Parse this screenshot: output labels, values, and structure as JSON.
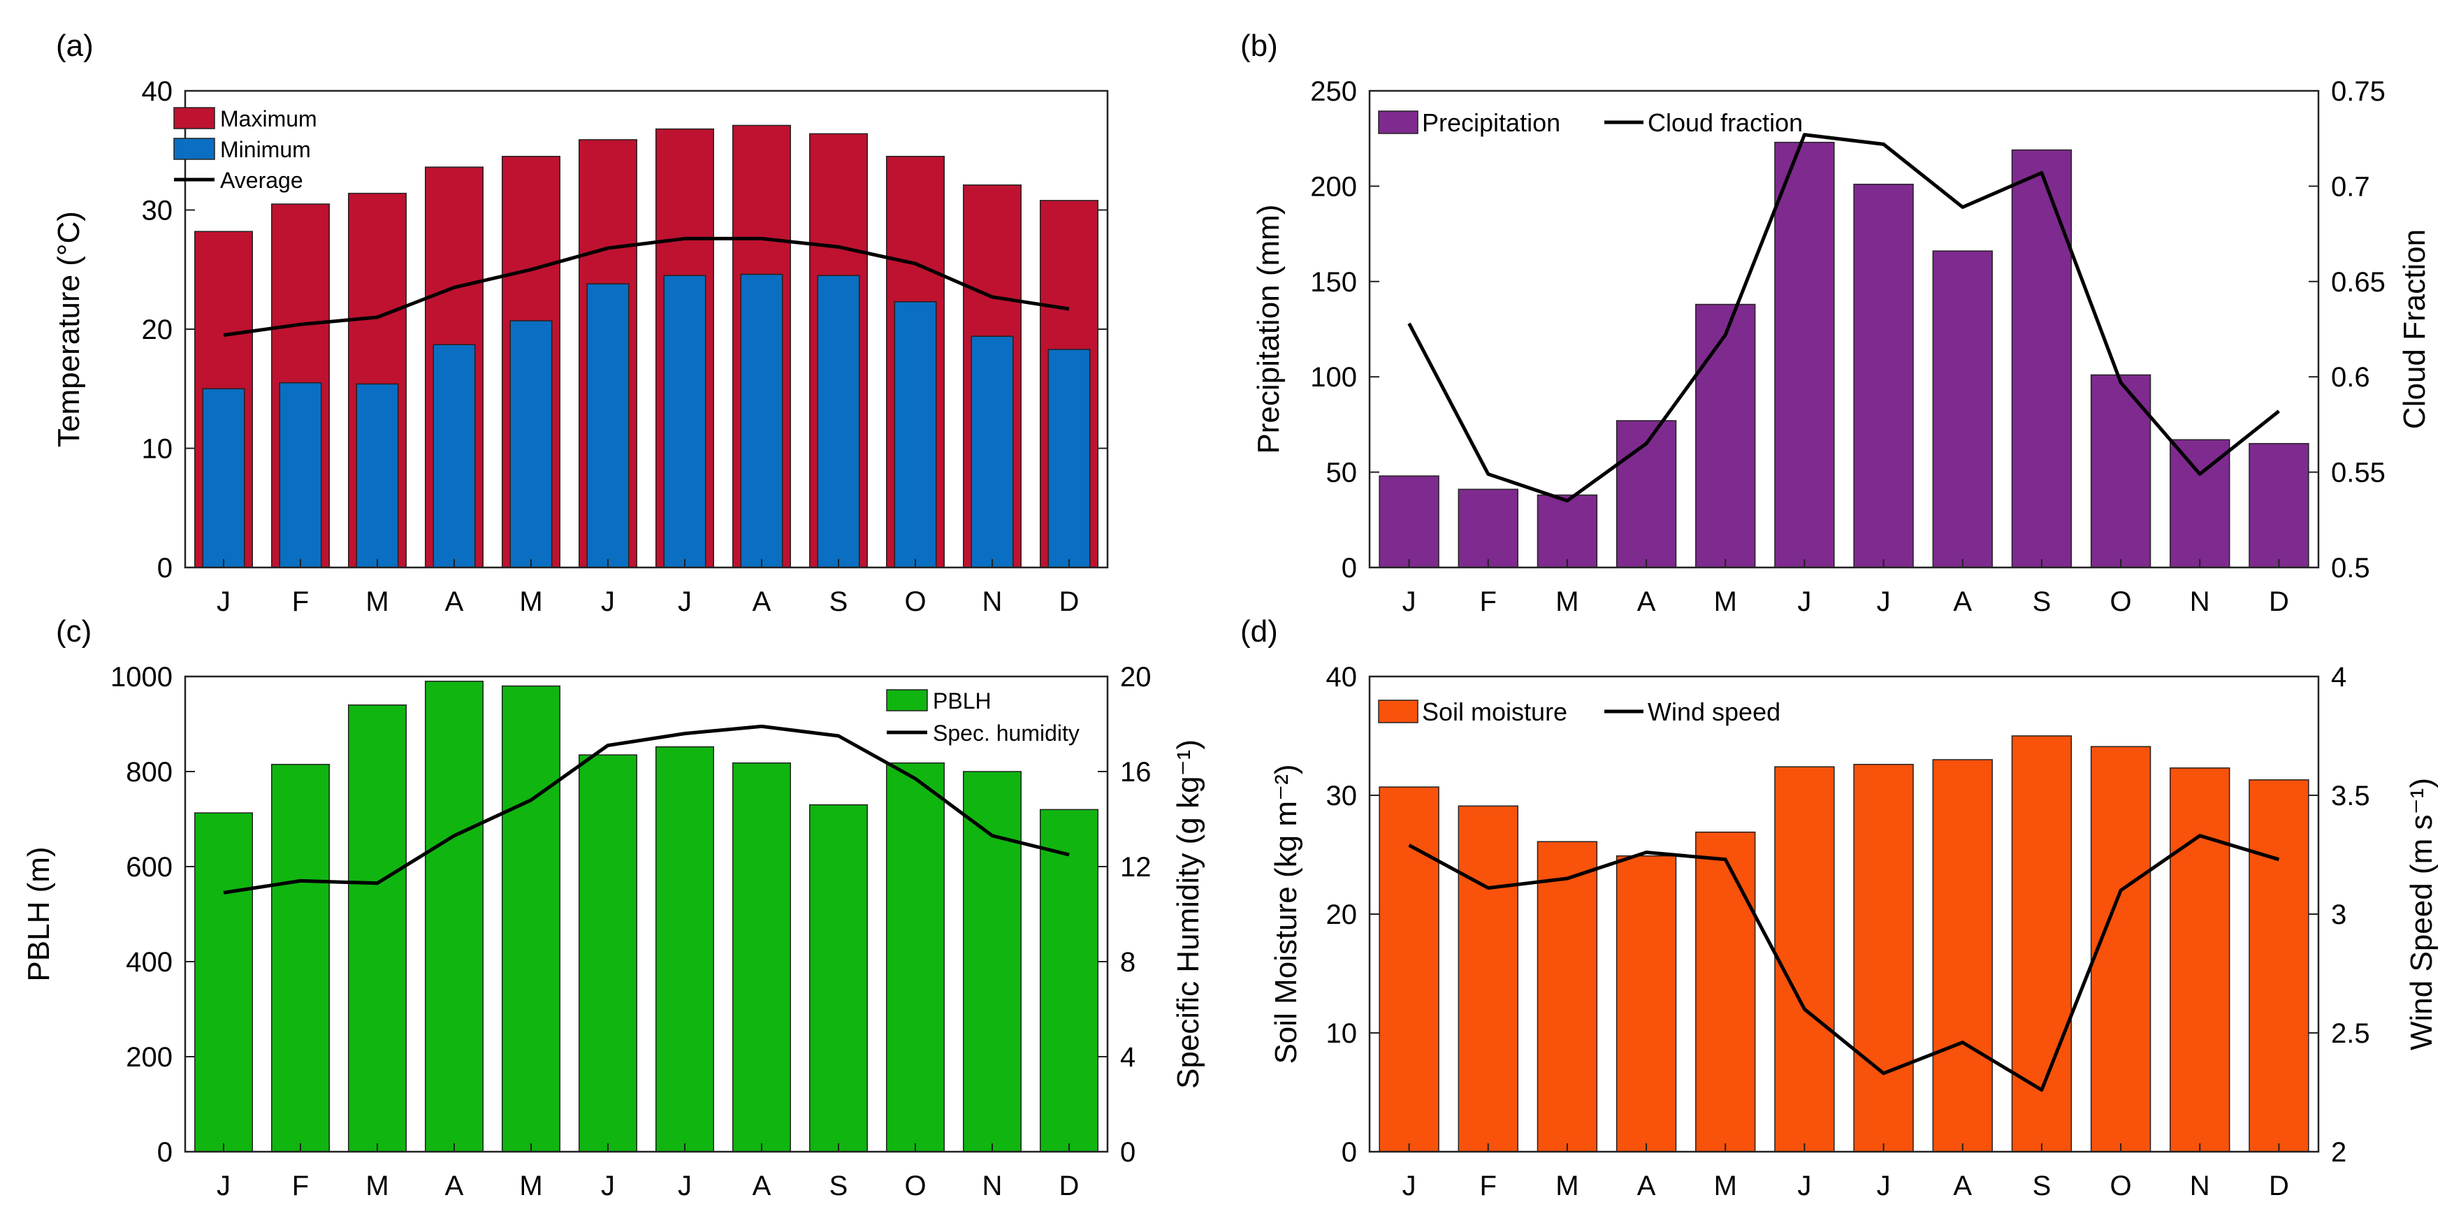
{
  "chart_data": [
    {
      "panel_label": "(a)",
      "type": "bar",
      "categories": [
        "J",
        "F",
        "M",
        "A",
        "M",
        "J",
        "J",
        "A",
        "S",
        "O",
        "N",
        "D"
      ],
      "series": [
        {
          "name": "Maximum",
          "kind": "bar",
          "color": "#BE1230",
          "values": [
            28.2,
            30.5,
            31.4,
            33.6,
            34.5,
            35.9,
            36.8,
            37.1,
            36.4,
            34.5,
            32.1,
            30.8
          ]
        },
        {
          "name": "Minimum",
          "kind": "bar",
          "color": "#0A6FC2",
          "values": [
            15.0,
            15.5,
            15.4,
            18.7,
            20.7,
            23.8,
            24.5,
            24.6,
            24.5,
            22.3,
            19.4,
            18.3
          ]
        },
        {
          "name": "Average",
          "kind": "line",
          "color": "#000000",
          "values": [
            19.5,
            20.4,
            21.0,
            23.5,
            25.0,
            26.8,
            27.6,
            27.6,
            26.9,
            25.5,
            22.7,
            21.7
          ]
        }
      ],
      "ylabel": "Temperature (°C)",
      "ylim": [
        0,
        40
      ],
      "yticks": [
        0,
        10,
        20,
        30,
        40
      ],
      "legend": "top-left"
    },
    {
      "panel_label": "(b)",
      "type": "bar",
      "categories": [
        "J",
        "F",
        "M",
        "A",
        "M",
        "J",
        "J",
        "A",
        "S",
        "O",
        "N",
        "D"
      ],
      "series": [
        {
          "name": "Precipitation",
          "kind": "bar",
          "axis": "left",
          "color": "#7E2A8E",
          "values": [
            48,
            41,
            38,
            77,
            138,
            223,
            201,
            166,
            219,
            101,
            67,
            65
          ]
        },
        {
          "name": "Cloud fraction",
          "kind": "line",
          "axis": "right",
          "color": "#000000",
          "values": [
            0.628,
            0.549,
            0.535,
            0.565,
            0.622,
            0.727,
            0.722,
            0.689,
            0.707,
            0.597,
            0.549,
            0.582
          ]
        }
      ],
      "ylabel": "Precipitation (mm)",
      "y2label": "Cloud Fraction",
      "ylim": [
        0,
        250
      ],
      "yticks": [
        0,
        50,
        100,
        150,
        200,
        250
      ],
      "y2lim": [
        0.5,
        0.75
      ],
      "y2ticks": [
        "0.5",
        "0.55",
        "0.6",
        "0.65",
        "0.7",
        "0.75"
      ],
      "legend": "top-left"
    },
    {
      "panel_label": "(c)",
      "type": "bar",
      "categories": [
        "J",
        "F",
        "M",
        "A",
        "M",
        "J",
        "J",
        "A",
        "S",
        "O",
        "N",
        "D"
      ],
      "series": [
        {
          "name": "PBLH",
          "kind": "bar",
          "axis": "left",
          "color": "#10B510",
          "values": [
            713,
            815,
            940,
            990,
            980,
            835,
            852,
            818,
            730,
            818,
            800,
            720
          ]
        },
        {
          "name": "Spec. humidity",
          "kind": "line",
          "axis": "right",
          "color": "#000000",
          "values": [
            10.9,
            11.4,
            11.3,
            13.3,
            14.8,
            17.1,
            17.6,
            17.9,
            17.5,
            15.7,
            13.3,
            12.5
          ]
        }
      ],
      "ylabel": "PBLH (m)",
      "y2label": "Specific Humidity (g kg⁻¹)",
      "ylim": [
        0,
        1000
      ],
      "yticks": [
        0,
        200,
        400,
        600,
        800,
        1000
      ],
      "y2lim": [
        0,
        20
      ],
      "y2ticks": [
        0,
        4,
        8,
        12,
        16,
        20
      ],
      "legend": "top-right"
    },
    {
      "panel_label": "(d)",
      "type": "bar",
      "categories": [
        "J",
        "F",
        "M",
        "A",
        "M",
        "J",
        "J",
        "A",
        "S",
        "O",
        "N",
        "D"
      ],
      "series": [
        {
          "name": "Soil moisture",
          "kind": "bar",
          "axis": "left",
          "color": "#F8520B",
          "values": [
            30.7,
            29.1,
            26.1,
            24.9,
            26.9,
            32.4,
            32.6,
            33.0,
            35.0,
            34.1,
            32.3,
            31.3
          ]
        },
        {
          "name": "Wind speed",
          "kind": "line",
          "axis": "right",
          "color": "#000000",
          "values": [
            3.29,
            3.11,
            3.15,
            3.26,
            3.23,
            2.6,
            2.33,
            2.46,
            2.26,
            3.1,
            3.33,
            3.23
          ]
        }
      ],
      "ylabel": "Soil Moisture (kg m⁻²)",
      "y2label": "Wind Speed (m s⁻¹)",
      "ylim": [
        0,
        40
      ],
      "yticks": [
        0,
        10,
        20,
        30,
        40
      ],
      "y2lim": [
        2,
        4
      ],
      "y2ticks": [
        "2",
        "2.5",
        "3",
        "3.5",
        "4"
      ],
      "legend": "top-left"
    }
  ]
}
